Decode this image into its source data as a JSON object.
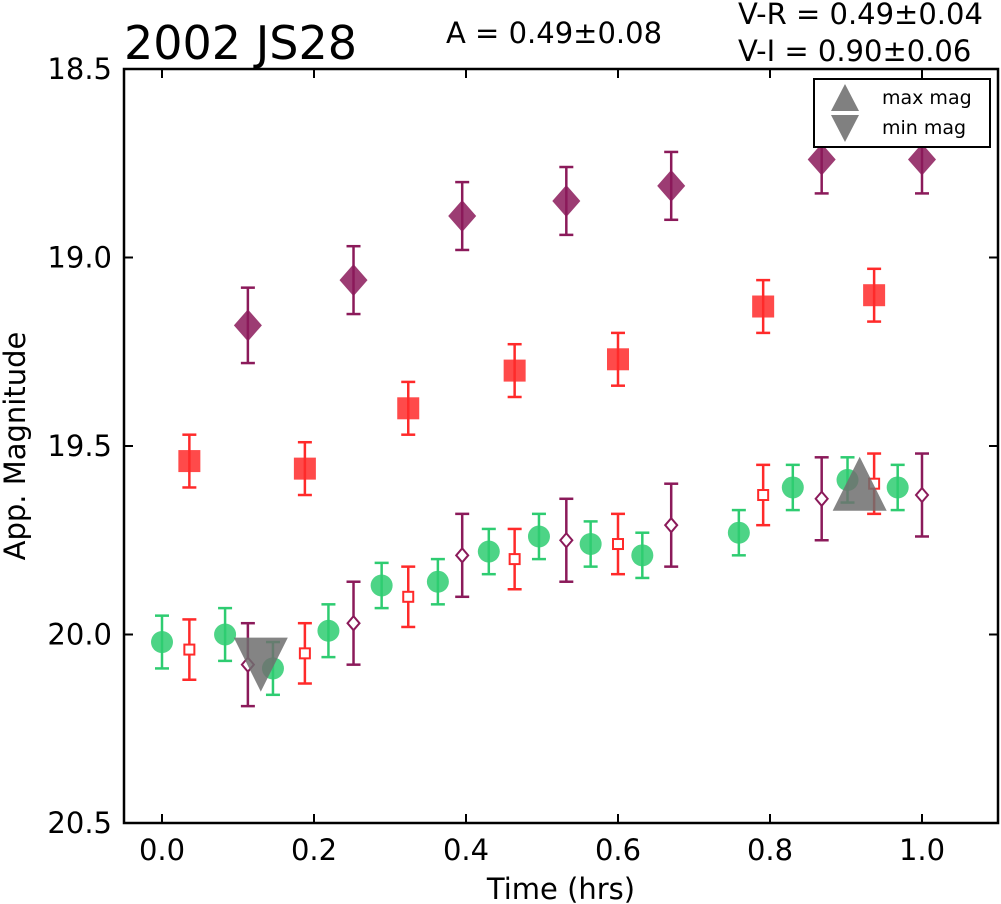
{
  "chart_data": {
    "type": "scatter",
    "title": "2002 JS28",
    "annotations": {
      "amplitude": "A  = 0.49±0.08",
      "color_vr": "V-R = 0.49±0.04",
      "color_vi": "V-I  = 0.90±0.06"
    },
    "xlabel": "Time (hrs)",
    "ylabel": "App. Magnitude",
    "xlim": [
      -0.05,
      1.1
    ],
    "ylim": [
      20.5,
      18.5
    ],
    "y_inverted": true,
    "xticks": [
      0.0,
      0.2,
      0.4,
      0.6,
      0.8,
      1.0
    ],
    "xtick_labels": [
      "0.0",
      "0.2",
      "0.4",
      "0.6",
      "0.8",
      "1.0"
    ],
    "yticks": [
      18.5,
      19.0,
      19.5,
      20.0,
      20.5
    ],
    "ytick_labels": [
      "18.5",
      "19.0",
      "19.5",
      "20.0",
      "20.5"
    ],
    "grid": false,
    "legend": {
      "placement": "top-right",
      "entries": [
        {
          "label": "max mag",
          "marker": "triangle-up",
          "color": "#808080"
        },
        {
          "label": "min mag",
          "marker": "triangle-down",
          "color": "#808080"
        }
      ]
    },
    "series": [
      {
        "color": "#2ecc71",
        "marker": "circle",
        "filled": true,
        "x": [
          0.0,
          0.083,
          0.146,
          0.219,
          0.289,
          0.363,
          0.43,
          0.496,
          0.564,
          0.632,
          0.759,
          0.83,
          0.902,
          0.968
        ],
        "y": [
          20.02,
          20.0,
          20.09,
          19.99,
          19.87,
          19.86,
          19.78,
          19.74,
          19.76,
          19.79,
          19.73,
          19.61,
          19.59,
          19.61
        ],
        "err": [
          0.07,
          0.07,
          0.07,
          0.07,
          0.06,
          0.06,
          0.06,
          0.06,
          0.06,
          0.06,
          0.06,
          0.06,
          0.06,
          0.06
        ]
      },
      {
        "color": "#ff2a2a",
        "marker": "square",
        "filled": false,
        "x": [
          0.036,
          0.188,
          0.324,
          0.464,
          0.6,
          0.791,
          0.937
        ],
        "y": [
          20.04,
          20.05,
          19.9,
          19.8,
          19.76,
          19.63,
          19.6
        ],
        "err": [
          0.08,
          0.08,
          0.08,
          0.08,
          0.08,
          0.08,
          0.08
        ]
      },
      {
        "color": "#ff2a2a",
        "marker": "square",
        "filled": true,
        "x": [
          0.036,
          0.188,
          0.324,
          0.464,
          0.6,
          0.791,
          0.937
        ],
        "y": [
          19.54,
          19.56,
          19.4,
          19.3,
          19.27,
          19.13,
          19.1
        ],
        "err": [
          0.07,
          0.07,
          0.07,
          0.07,
          0.07,
          0.07,
          0.07
        ]
      },
      {
        "color": "#8b1a5a",
        "marker": "diamond",
        "filled": false,
        "x": [
          0.113,
          0.252,
          0.395,
          0.532,
          0.67,
          0.868,
          1.0
        ],
        "y": [
          20.08,
          19.97,
          19.79,
          19.75,
          19.71,
          19.64,
          19.63
        ],
        "err": [
          0.11,
          0.11,
          0.11,
          0.11,
          0.11,
          0.11,
          0.11
        ]
      },
      {
        "color": "#8b1a5a",
        "marker": "diamond",
        "filled": true,
        "x": [
          0.113,
          0.252,
          0.395,
          0.532,
          0.67,
          0.868,
          1.0
        ],
        "y": [
          19.18,
          19.06,
          18.89,
          18.85,
          18.81,
          18.74,
          18.74
        ],
        "err": [
          0.1,
          0.09,
          0.09,
          0.09,
          0.09,
          0.09,
          0.09
        ]
      }
    ],
    "extrema": [
      {
        "kind": "min",
        "marker": "triangle-down",
        "x": 0.13,
        "y": 20.08,
        "color": "#6e6e6e"
      },
      {
        "kind": "max",
        "marker": "triangle-up",
        "x": 0.918,
        "y": 19.6,
        "color": "#6e6e6e"
      }
    ]
  }
}
